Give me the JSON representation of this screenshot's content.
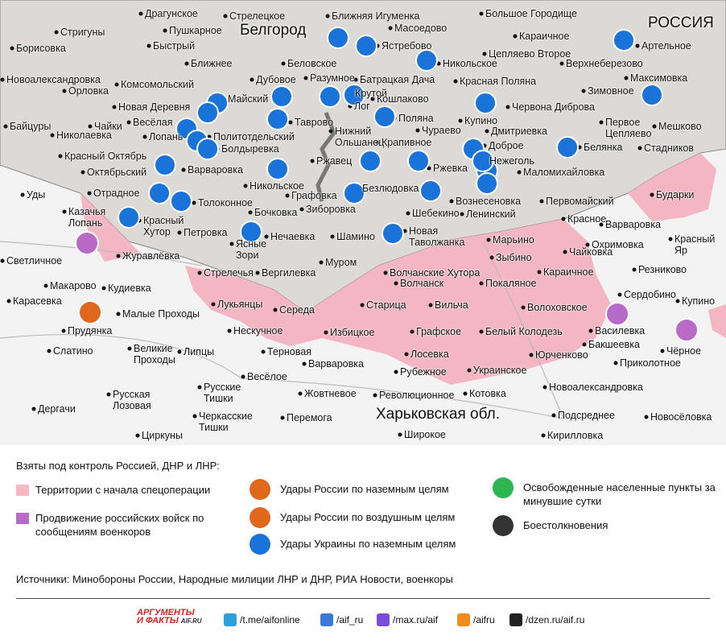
{
  "map": {
    "city": "Белгород",
    "country": "РОССИЯ",
    "region": "Харьковская обл.",
    "places": [
      "Драгунское",
      "Стрелецкое",
      "Ближняя Игуменка",
      "Большое Городище",
      "Стригуны",
      "Пушкарное",
      "Масоедово",
      "Караичное",
      "Борисовка",
      "Быстрый",
      "Ястребово",
      "Цепляево Второе",
      "Артельное",
      "Ближнее",
      "Беловское",
      "Никольское",
      "Верхнеберезово",
      "Новоалександровка",
      "Дубовое",
      "Разумное",
      "Батрацкая Дача",
      "Красная Поляна",
      "Максимовка",
      "Орловка",
      "Комсомольский",
      "Крутой",
      "Зимовное",
      "Майский",
      "Кошлаково",
      "Новая Деревня",
      "Лог",
      "Червона Диброва",
      "Весёлая",
      "Таврово",
      "Поляна",
      "Купино",
      "Байцуры",
      "Чайки",
      "Нижний Ольшанец",
      "Политотдельский",
      "Николаевка",
      "Лопань",
      "Чураево",
      "Дмитриевка",
      "Первое Цепляево",
      "Мешково",
      "Болдыревка",
      "Крапивное",
      "Доброе",
      "Белянка",
      "Стадников",
      "Красный Октябрь",
      "Нежеголь",
      "Ржавец",
      "Октябрьский",
      "Варваровка",
      "Ржевка",
      "Маломихайловка",
      "Никольское",
      "Безлюдовка",
      "Бударки",
      "Уды",
      "Отрадное",
      "Толоконное",
      "Графовка",
      "Вознесеновка",
      "Первомайский",
      "Казачья Лопань",
      "Бочковка",
      "Зиборовка",
      "Шебекино",
      "Ленинский",
      "Красное",
      "Варваровка",
      "Красный Хутор",
      "Нечаевка",
      "Петровка",
      "Шамино",
      "Новая Таволжанка",
      "Марьино",
      "Охримовка",
      "Красный Яр",
      "Ясные Зори",
      "Чайковка",
      "Светличное",
      "Журавлёвка",
      "Зыбино",
      "Резниково",
      "Стрелечья",
      "Муром",
      "Вергилевка",
      "Волчанские Хутора",
      "Караичное",
      "Волчанск",
      "Покаляное",
      "Макарово",
      "Кудиевка",
      "Сердобино",
      "Карасевка",
      "Лукьянцы",
      "Старица",
      "Вильча",
      "Волоховское",
      "Купино",
      "Середа",
      "Малые Проходы",
      "Прудянка",
      "Нескучное",
      "Избицкое",
      "Графское",
      "Белый Колодезь",
      "Василевка",
      "Бакшеевка",
      "Чёрное",
      "Великие Проходы",
      "Липцы",
      "Терновая",
      "Лосевка",
      "Юрченково",
      "Слатино",
      "Варваровка",
      "Приколотное",
      "Рубежное",
      "Украинское",
      "Весёлое",
      "Русские Тишки",
      "Новоалександровка",
      "Русская Лозовая",
      "Жовтневое",
      "Революционное",
      "Котовка",
      "Дергачи",
      "Черкасские Тишки",
      "Перемога",
      "Подсреднее",
      "Новосёловка",
      "Циркуны",
      "Широкое",
      "Кирилловка"
    ]
  },
  "legend": {
    "title": "Взяты под контроль Россией, ДНР и ЛНР:",
    "items": [
      "Территории с начала спецоперации",
      "Продвижение российских войск по сообщениям военкоров",
      "Удары России по наземным целям",
      "Удары России по воздушным целям",
      "Удары Украины по наземным целям",
      "Освобожденные населенные пункты за минувшие сутки",
      "Боестолкновения"
    ]
  },
  "sources": "Источники: Минобороны России, Народные милиции ЛНР и ДНР, РИА Новости, военкоры",
  "footer": {
    "logo_top": "АРГУМЕНТЫ",
    "logo_bottom": "И ФАКТЫ",
    "logo_site": "AIF.RU",
    "links": [
      "/t.me/aifonline",
      "/aif_ru",
      "/max.ru/aif",
      "/aifru",
      "/dzen.ru/aif.ru"
    ]
  }
}
